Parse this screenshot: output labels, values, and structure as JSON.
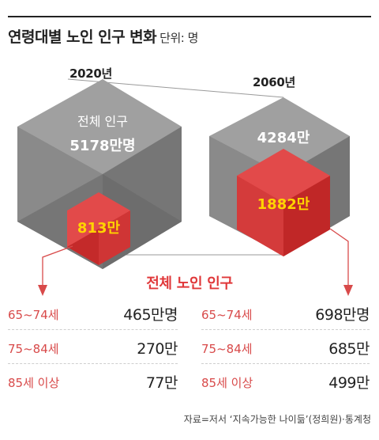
{
  "title": "연령대별 노인 인구 변화",
  "unit": "단위: 명",
  "chart_data": {
    "type": "table",
    "title": "연령대별 노인 인구 변화",
    "unit": "명",
    "years": [
      {
        "year": "2020년",
        "total_population_label": "전체 인구",
        "total_population": "5178만명",
        "elderly_population": "813만",
        "total_population_man": 5178,
        "elderly_population_man": 813
      },
      {
        "year": "2060년",
        "total_population": "4284만",
        "elderly_population": "1882만",
        "total_population_man": 4284,
        "elderly_population_man": 1882
      }
    ],
    "breakdown_title": "전체 노인 인구",
    "age_groups": [
      "65~74세",
      "75~84세",
      "85세 이상"
    ],
    "series": [
      {
        "year": "2020년",
        "values": [
          "465만명",
          "270만",
          "77만"
        ],
        "values_man": [
          465,
          270,
          77
        ]
      },
      {
        "year": "2060년",
        "values": [
          "698만명",
          "685만",
          "499만"
        ],
        "values_man": [
          698,
          685,
          499
        ]
      }
    ]
  },
  "colors": {
    "hex_outer_top": "#a0a0a0",
    "hex_outer_side": "#7a7a7a",
    "hex_outer_dark": "#5e5e5e",
    "hex_inner_top": "#e14e4e",
    "hex_inner_side": "#c02727",
    "accent_red": "#e0383a",
    "inner_value": "#ffd400"
  },
  "source": "자료=저서 ‘지속가능한 나이듦’(정희원)·통계청"
}
